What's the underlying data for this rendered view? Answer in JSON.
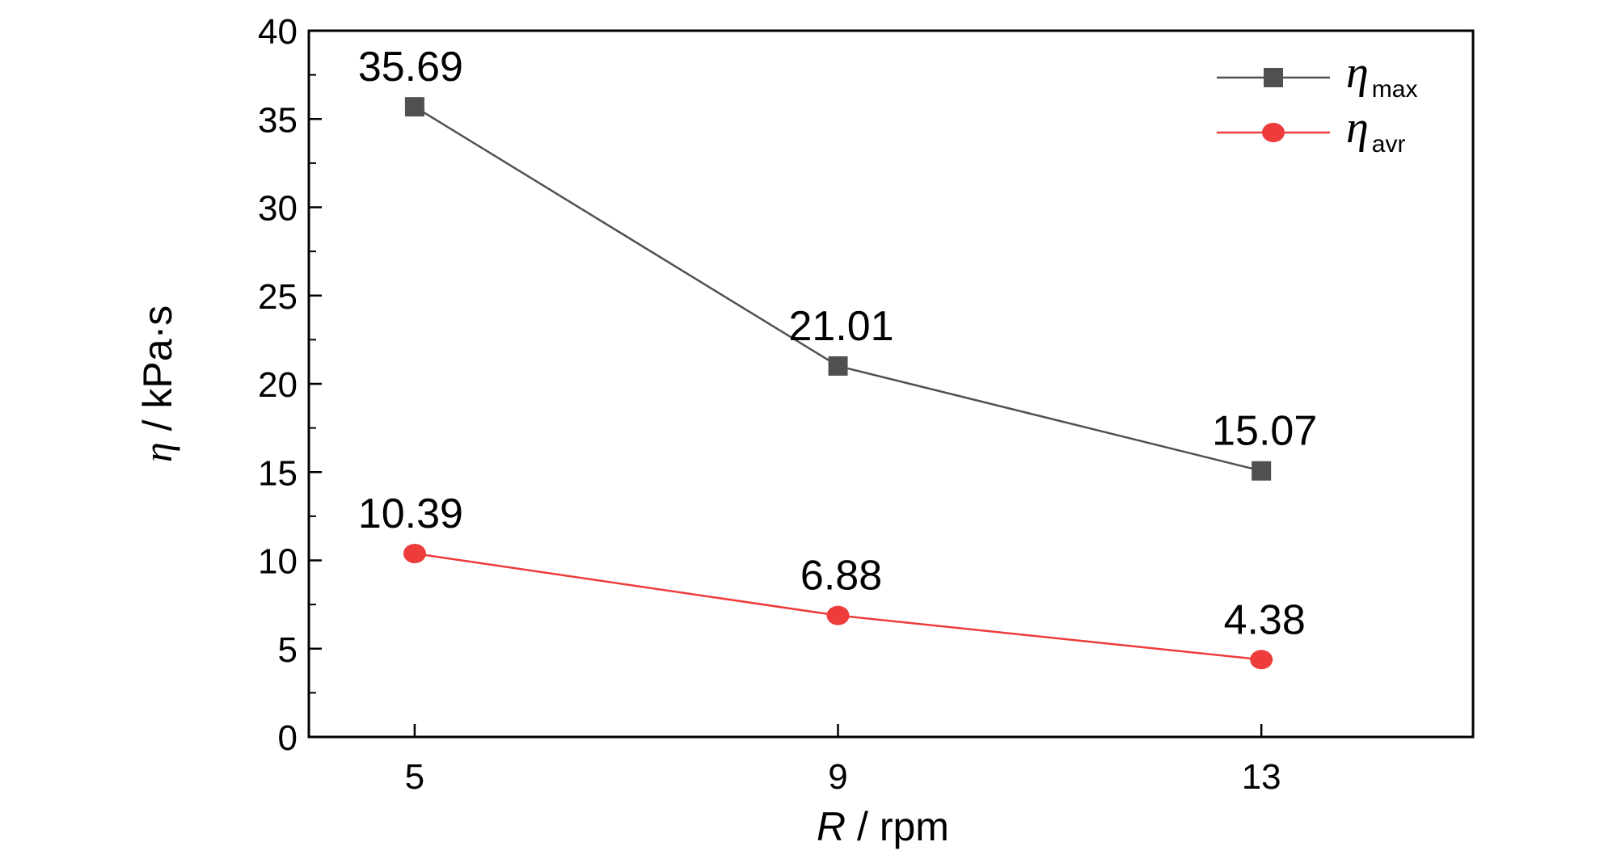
{
  "chart_data": {
    "type": "line",
    "x": [
      5,
      9,
      13
    ],
    "xlabel": {
      "var": "R",
      "unit": " / rpm"
    },
    "ylabel": {
      "var": "η",
      "unit": " / kPa·s"
    },
    "ylim": [
      0,
      40
    ],
    "xlim": [
      4,
      15
    ],
    "yticks": [
      0,
      5,
      10,
      15,
      20,
      25,
      30,
      35,
      40
    ],
    "xticks": [
      5,
      9,
      13
    ],
    "grid": false,
    "legend_position": "top-right",
    "series": [
      {
        "name": "η",
        "sub": "max",
        "color": "#505050",
        "marker": "square",
        "values": [
          35.69,
          21.01,
          15.07
        ],
        "labels": [
          "35.69",
          "21.01",
          "15.07"
        ]
      },
      {
        "name": "η",
        "sub": "avr",
        "color": "#ee3b3b",
        "marker": "circle",
        "values": [
          10.39,
          6.88,
          4.38
        ],
        "labels": [
          "10.39",
          "6.88",
          "4.38"
        ]
      }
    ]
  }
}
